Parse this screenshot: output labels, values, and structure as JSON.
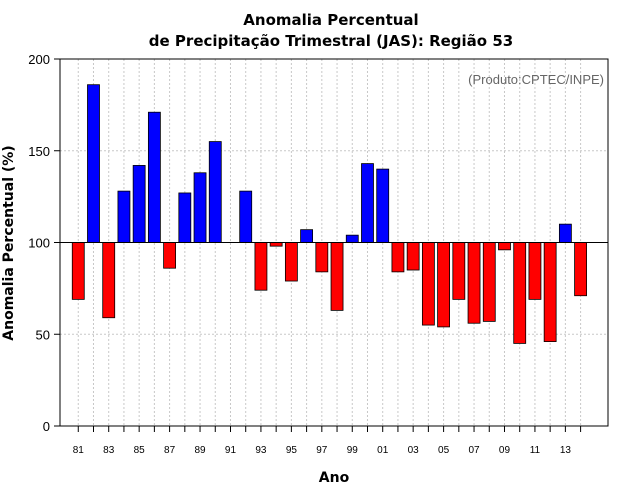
{
  "chart_data": {
    "type": "bar",
    "title_line1": "Anomalia Percentual",
    "title_line2": "de Precipitação Trimestral (JAS): Região 53",
    "xlabel": "Ano",
    "ylabel": "Anomalia Percentual (%)",
    "annotation": "(Produto:CPTEC/INPE)",
    "ylim": [
      0,
      200
    ],
    "yticks": [
      0,
      50,
      100,
      150,
      200
    ],
    "baseline": 100,
    "xlim": [
      1979.8,
      2015.8
    ],
    "grid": true,
    "colors": {
      "above": "#0000ff",
      "below": "#ff0000"
    },
    "xtick_labels": [
      {
        "year": 1981,
        "label": "81"
      },
      {
        "year": 1983,
        "label": "83"
      },
      {
        "year": 1985,
        "label": "85"
      },
      {
        "year": 1987,
        "label": "87"
      },
      {
        "year": 1989,
        "label": "89"
      },
      {
        "year": 1991,
        "label": "91"
      },
      {
        "year": 1993,
        "label": "93"
      },
      {
        "year": 1995,
        "label": "95"
      },
      {
        "year": 1997,
        "label": "97"
      },
      {
        "year": 1999,
        "label": "99"
      },
      {
        "year": 2001,
        "label": "01"
      },
      {
        "year": 2003,
        "label": "03"
      },
      {
        "year": 2005,
        "label": "05"
      },
      {
        "year": 2007,
        "label": "07"
      },
      {
        "year": 2009,
        "label": "09"
      },
      {
        "year": 2011,
        "label": "11"
      },
      {
        "year": 2013,
        "label": "13"
      }
    ],
    "years": [
      1981,
      1982,
      1983,
      1984,
      1985,
      1986,
      1987,
      1988,
      1989,
      1990,
      1991,
      1992,
      1993,
      1994,
      1995,
      1996,
      1997,
      1998,
      1999,
      2000,
      2001,
      2002,
      2003,
      2004,
      2005,
      2006,
      2007,
      2008,
      2009,
      2010,
      2011,
      2012,
      2013,
      2014
    ],
    "values": [
      69,
      186,
      59,
      128,
      142,
      171,
      86,
      127,
      138,
      155,
      100,
      128,
      74,
      98,
      79,
      107,
      84,
      63,
      104,
      143,
      140,
      84,
      85,
      55,
      54,
      69,
      56,
      57,
      96,
      45,
      69,
      46,
      110,
      71
    ]
  }
}
